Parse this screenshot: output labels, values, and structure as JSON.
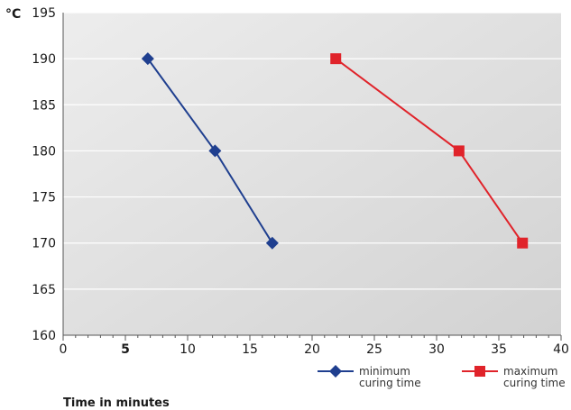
{
  "chart_data": {
    "type": "line",
    "y_unit_label": "°C",
    "xlabel": "Time in minutes",
    "xlim": [
      0,
      40
    ],
    "ylim": [
      160,
      195
    ],
    "x_ticks": [
      0,
      5,
      10,
      15,
      20,
      25,
      30,
      35,
      40
    ],
    "x_tick_labels": [
      "0",
      "5",
      "10",
      "15",
      "20",
      "25",
      "30",
      "35",
      "40"
    ],
    "x_tick_bold": [
      false,
      true,
      false,
      false,
      false,
      false,
      false,
      false,
      false
    ],
    "y_ticks": [
      160,
      165,
      170,
      175,
      180,
      185,
      190,
      195
    ],
    "y_tick_labels": [
      "160",
      "165",
      "170",
      "175",
      "180",
      "185",
      "190",
      "195"
    ],
    "grid": true,
    "legend_position": "bottom-right",
    "series": [
      {
        "name": "minimum curing time",
        "name_lines": [
          "minimum",
          "curing time"
        ],
        "color": "#1f3f8f",
        "marker": "diamond",
        "points": [
          [
            6.8,
            190
          ],
          [
            12.2,
            180
          ],
          [
            16.8,
            170
          ]
        ]
      },
      {
        "name": "maximum curing time",
        "name_lines": [
          "maximum",
          "curing time"
        ],
        "color": "#e0232a",
        "marker": "square",
        "points": [
          [
            21.9,
            190
          ],
          [
            31.8,
            180
          ],
          [
            36.9,
            170
          ]
        ]
      }
    ]
  }
}
